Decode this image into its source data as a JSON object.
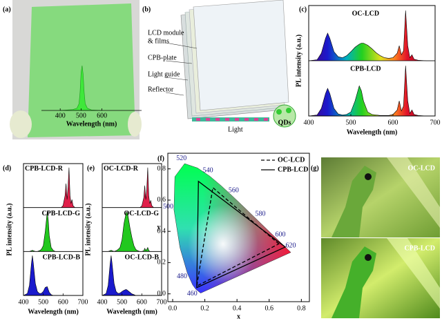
{
  "chart_data": [
    {
      "type": "spectrum",
      "panel": "(a)",
      "xlabel": "Wavelength (nm)",
      "frame": false,
      "x": [
        400,
        460,
        480,
        490,
        495,
        500,
        505,
        510,
        515,
        520,
        530,
        550,
        600
      ],
      "xlim": [
        310,
        790
      ],
      "ylim": [
        0,
        1
      ],
      "xticks": [
        400,
        500,
        600
      ],
      "series": [
        {
          "color": "#3fe83a",
          "values": [
            0,
            0.02,
            0.05,
            0.15,
            0.4,
            0.85,
            1,
            0.8,
            0.4,
            0.15,
            0.05,
            0.01,
            0
          ]
        }
      ]
    },
    {
      "type": "spectrum",
      "panel": "(c)",
      "xlabel": "Wavelength (nm)",
      "ylabel": "PL intensity (a.u.)",
      "frame": true,
      "x": [
        400,
        420,
        430,
        440,
        445,
        450,
        460,
        470,
        480,
        490,
        500,
        510,
        520,
        525,
        530,
        540,
        550,
        560,
        570,
        580,
        590,
        600,
        610,
        615,
        620,
        625,
        630,
        635,
        640,
        645,
        650,
        660,
        680,
        700
      ],
      "xlim": [
        400,
        700
      ],
      "ylim": [
        0,
        1.1
      ],
      "xticks": [
        400,
        500,
        600,
        700
      ],
      "series": [
        {
          "name": "OC-LCD",
          "values": [
            0,
            0.02,
            0.15,
            0.45,
            0.55,
            0.45,
            0.18,
            0.08,
            0.06,
            0.1,
            0.18,
            0.27,
            0.33,
            0.35,
            0.35,
            0.31,
            0.24,
            0.16,
            0.1,
            0.06,
            0.05,
            0.06,
            0.15,
            0.3,
            0.12,
            0.2,
            1,
            0.3,
            0.06,
            0.12,
            0.03,
            0.01,
            0,
            0
          ]
        },
        {
          "name": "CPB-LCD",
          "values": [
            0,
            0.02,
            0.15,
            0.45,
            0.55,
            0.45,
            0.15,
            0.04,
            0.02,
            0.03,
            0.08,
            0.3,
            0.6,
            0.5,
            0.3,
            0.08,
            0.03,
            0.02,
            0.01,
            0.01,
            0.01,
            0.03,
            0.12,
            0.3,
            0.1,
            0.2,
            1,
            0.3,
            0.05,
            0.12,
            0.03,
            0.01,
            0,
            0
          ]
        }
      ]
    },
    {
      "type": "spectrum",
      "panel": "(d)",
      "xlabel": "Wavelength (nm)",
      "ylabel": "PL intensity (a.u.)",
      "frame": true,
      "x": [
        400,
        420,
        430,
        440,
        445,
        450,
        460,
        470,
        480,
        490,
        500,
        510,
        520,
        525,
        530,
        540,
        550,
        560,
        570,
        580,
        590,
        600,
        610,
        615,
        620,
        625,
        630,
        635,
        640,
        645,
        650,
        660,
        680,
        700
      ],
      "xlim": [
        400,
        700
      ],
      "ylim": [
        0,
        1.1
      ],
      "xticks": [
        400,
        500,
        600,
        700
      ],
      "series": [
        {
          "name": "CPB-LCD-R",
          "color": "#e0204a",
          "values": [
            0,
            0,
            0,
            0,
            0,
            0,
            0,
            0,
            0,
            0,
            0,
            0,
            0,
            0,
            0,
            0,
            0,
            0,
            0,
            0,
            0,
            0.05,
            0.3,
            0.6,
            0.2,
            0.5,
            1,
            0.3,
            0.1,
            0.2,
            0.05,
            0,
            0,
            0
          ]
        },
        {
          "name": "CPB-LCD-G",
          "color": "#22c81e",
          "values": [
            0,
            0,
            0,
            0.02,
            0.03,
            0.02,
            0,
            0,
            0.02,
            0.05,
            0.15,
            0.5,
            1,
            0.8,
            0.4,
            0.1,
            0.03,
            0,
            0,
            0,
            0,
            0,
            0,
            0,
            0,
            0,
            0,
            0,
            0,
            0,
            0,
            0,
            0,
            0
          ]
        },
        {
          "name": "CPB-LCD-B",
          "color": "#1a1acd",
          "values": [
            0,
            0.05,
            0.25,
            0.8,
            1,
            0.8,
            0.3,
            0.1,
            0.05,
            0.05,
            0.1,
            0.2,
            0.22,
            0.15,
            0.08,
            0.02,
            0,
            0,
            0,
            0,
            0,
            0,
            0,
            0,
            0,
            0,
            0,
            0,
            0,
            0,
            0,
            0,
            0,
            0
          ]
        }
      ]
    },
    {
      "type": "spectrum",
      "panel": "(e)",
      "xlabel": "Wavelength (nm)",
      "ylabel": "PL intensity (a.u.)",
      "frame": true,
      "x": [
        400,
        420,
        430,
        440,
        445,
        450,
        460,
        470,
        480,
        490,
        500,
        510,
        520,
        525,
        530,
        540,
        550,
        560,
        570,
        580,
        590,
        600,
        610,
        615,
        620,
        625,
        630,
        635,
        640,
        645,
        650,
        660,
        680,
        700
      ],
      "xlim": [
        400,
        700
      ],
      "ylim": [
        0,
        1.1
      ],
      "xticks": [
        400,
        500,
        600,
        700
      ],
      "series": [
        {
          "name": "OC-LCD-R",
          "color": "#e0204a",
          "values": [
            0,
            0,
            0,
            0,
            0,
            0,
            0,
            0,
            0,
            0,
            0,
            0,
            0,
            0,
            0,
            0,
            0,
            0,
            0,
            0,
            0,
            0.04,
            0.25,
            0.55,
            0.2,
            0.45,
            1,
            0.3,
            0.1,
            0.18,
            0.05,
            0,
            0,
            0
          ]
        },
        {
          "name": "OC-LCD-G",
          "color": "#22c81e",
          "values": [
            0,
            0,
            0,
            0.02,
            0.03,
            0.02,
            0,
            0.02,
            0.05,
            0.1,
            0.3,
            0.7,
            0.95,
            1,
            0.9,
            0.6,
            0.35,
            0.15,
            0.05,
            0.02,
            0,
            0,
            0.02,
            0.08,
            0.03,
            0.05,
            0.1,
            0.03,
            0,
            0,
            0,
            0,
            0,
            0
          ]
        },
        {
          "name": "OC-LCD-B",
          "color": "#1a1acd",
          "values": [
            0,
            0.05,
            0.25,
            0.8,
            1,
            0.8,
            0.3,
            0.1,
            0.05,
            0.06,
            0.1,
            0.13,
            0.15,
            0.14,
            0.12,
            0.08,
            0.04,
            0.02,
            0,
            0,
            0,
            0,
            0,
            0,
            0,
            0,
            0,
            0,
            0,
            0,
            0,
            0,
            0,
            0
          ]
        }
      ]
    },
    {
      "type": "cie",
      "panel": "(f)",
      "xlabel": "x",
      "ylabel": "y",
      "xlim": [
        -0.03,
        0.85
      ],
      "ylim": [
        -0.05,
        0.9
      ],
      "xticks": [
        {
          "value": 0,
          "label": "0.0"
        },
        0.2,
        0.4,
        0.6,
        0.8
      ],
      "yticks": [
        {
          "value": 0,
          "label": "0.0"
        },
        0.2,
        0.4,
        0.6,
        0.8
      ],
      "locus": {
        "x": [
          0.1741,
          0.144,
          0.1241,
          0.0913,
          0.0454,
          0.0082,
          0.0139,
          0.0743,
          0.1547,
          0.2296,
          0.3016,
          0.3731,
          0.4441,
          0.5125,
          0.5752,
          0.627,
          0.6915,
          0.7347
        ],
        "y": [
          0.005,
          0.0297,
          0.0578,
          0.1327,
          0.295,
          0.5384,
          0.7502,
          0.8338,
          0.8059,
          0.7543,
          0.6923,
          0.6245,
          0.5547,
          0.4866,
          0.4242,
          0.3725,
          0.3083,
          0.2653
        ]
      },
      "markers": {
        "labels": [
          460,
          480,
          500,
          520,
          540,
          560,
          580,
          600,
          620
        ],
        "x": [
          0.144,
          0.0913,
          0.0082,
          0.0743,
          0.2296,
          0.3731,
          0.5125,
          0.627,
          0.6915
        ],
        "y": [
          0.0297,
          0.1327,
          0.5384,
          0.8338,
          0.7543,
          0.6245,
          0.4866,
          0.3725,
          0.3083
        ]
      },
      "legend": "upper right",
      "series": [
        {
          "name": "OC-LCD",
          "line": "dashed",
          "x": [
            0.66,
            0.25,
            0.15
          ],
          "y": [
            0.32,
            0.68,
            0.05
          ]
        },
        {
          "name": "CPB-LCD",
          "line": "solid",
          "x": [
            0.7,
            0.16,
            0.15
          ],
          "y": [
            0.3,
            0.72,
            0.04
          ]
        }
      ]
    }
  ],
  "diagram": {
    "panel": "(b)",
    "labels": [
      "LCD module",
      "& films",
      "CPB-plate",
      "Light guide",
      "Reflector",
      "Light",
      "QDs"
    ]
  },
  "photo": {
    "panel": "(g)",
    "labels": [
      "OC-LCD",
      "CPB-LCD"
    ]
  }
}
